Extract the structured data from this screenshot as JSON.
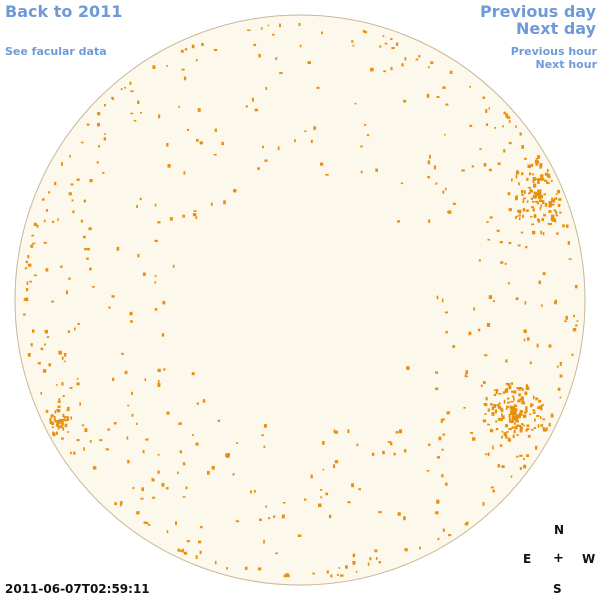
{
  "nav": {
    "back_label": "Back to 2011",
    "facular_label": "See facular data",
    "prev_day_label": "Previous day",
    "next_day_label": "Next day",
    "prev_hour_label": "Previous hour",
    "next_hour_label": "Next hour"
  },
  "timestamp": "2011-06-07T02:59:11",
  "compass": {
    "n": "N",
    "e": "E",
    "center": "+",
    "w": "W",
    "s": "S"
  },
  "colors": {
    "link": "#6f9ad8",
    "disk_fill": "#fdf8ec",
    "disk_outline": "#c9b79a",
    "facula": "#e8900e"
  },
  "disk": {
    "facula_count": 520,
    "random_seed": 2011
  }
}
